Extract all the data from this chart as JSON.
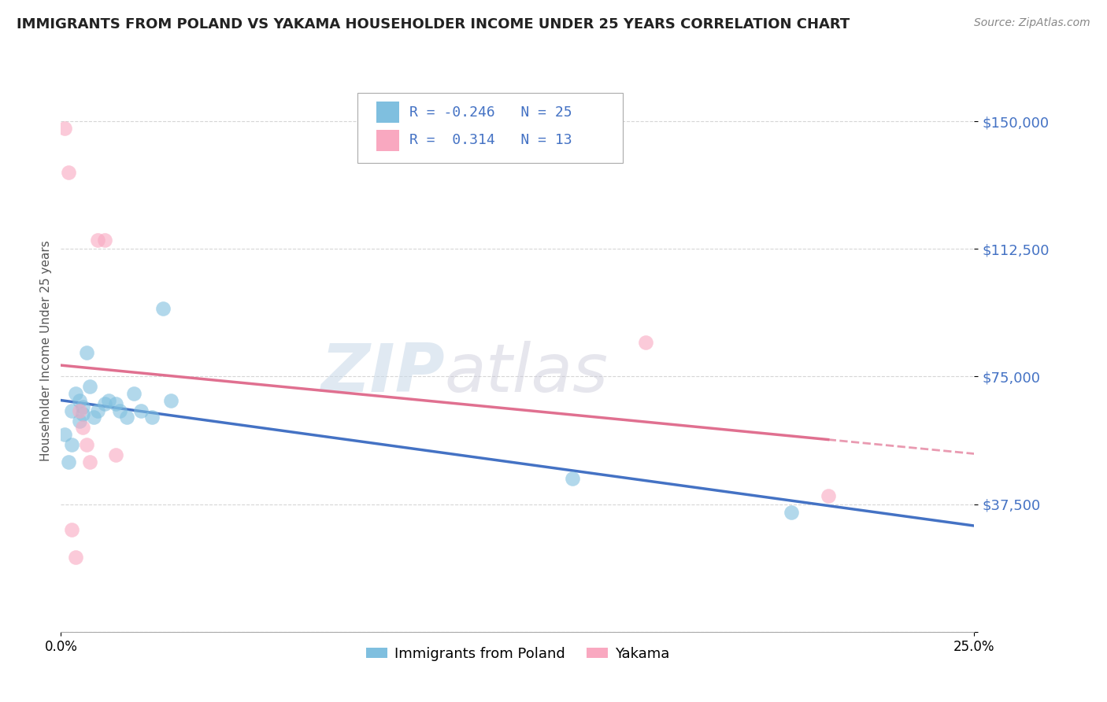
{
  "title": "IMMIGRANTS FROM POLAND VS YAKAMA HOUSEHOLDER INCOME UNDER 25 YEARS CORRELATION CHART",
  "source": "Source: ZipAtlas.com",
  "ylabel": "Householder Income Under 25 years",
  "xmin": 0.0,
  "xmax": 0.25,
  "legend_label1": "Immigrants from Poland",
  "legend_label2": "Yakama",
  "R1": -0.246,
  "N1": 25,
  "R2": 0.314,
  "N2": 13,
  "color1": "#7fbfdf",
  "color2": "#f9a8c0",
  "line_color1": "#4472c4",
  "line_color2": "#e07090",
  "watermark_zip": "ZIP",
  "watermark_atlas": "atlas",
  "poland_x": [
    0.001,
    0.002,
    0.003,
    0.003,
    0.004,
    0.005,
    0.005,
    0.006,
    0.006,
    0.007,
    0.008,
    0.009,
    0.01,
    0.012,
    0.013,
    0.015,
    0.016,
    0.018,
    0.02,
    0.022,
    0.025,
    0.028,
    0.03,
    0.14,
    0.2
  ],
  "poland_y": [
    58000,
    50000,
    65000,
    55000,
    70000,
    62000,
    68000,
    64000,
    66000,
    82000,
    72000,
    63000,
    65000,
    67000,
    68000,
    67000,
    65000,
    63000,
    70000,
    65000,
    63000,
    95000,
    68000,
    45000,
    35000
  ],
  "yakama_x": [
    0.001,
    0.002,
    0.003,
    0.004,
    0.005,
    0.006,
    0.007,
    0.008,
    0.01,
    0.012,
    0.015,
    0.16,
    0.21
  ],
  "yakama_y": [
    148000,
    135000,
    30000,
    22000,
    65000,
    60000,
    55000,
    50000,
    115000,
    115000,
    52000,
    85000,
    40000
  ],
  "ytick_vals": [
    0,
    37500,
    75000,
    112500,
    150000
  ],
  "ytick_labels": [
    "",
    "$37,500",
    "$75,000",
    "$112,500",
    "$150,000"
  ]
}
